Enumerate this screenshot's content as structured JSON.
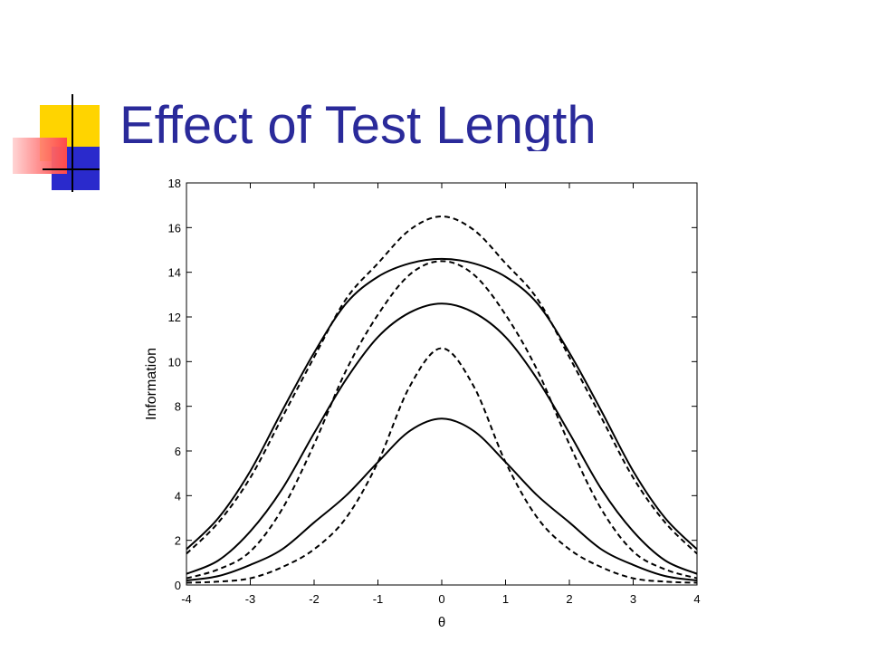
{
  "slide": {
    "title": "Effect of Test Length"
  },
  "colors": {
    "title": "#2a2a9a",
    "accent_yellow": "#ffd400",
    "accent_blue": "#2a2acc",
    "accent_red": "#ff4a4a",
    "curve": "#000000"
  },
  "chart_data": {
    "type": "line",
    "title": "",
    "xlabel": "θ",
    "ylabel": "Information",
    "xlim": [
      -4,
      4
    ],
    "ylim": [
      0,
      18
    ],
    "xticks": [
      -4,
      -3,
      -2,
      -1,
      0,
      1,
      2,
      3,
      4
    ],
    "yticks": [
      0,
      2,
      4,
      6,
      8,
      10,
      12,
      14,
      16,
      18
    ],
    "grid": false,
    "legend": "none",
    "x": [
      -4,
      -3.5,
      -3,
      -2.5,
      -2,
      -1.5,
      -1,
      -0.5,
      0,
      0.5,
      1,
      1.5,
      2,
      2.5,
      3,
      3.5,
      4
    ],
    "series": [
      {
        "style": "solid",
        "values": [
          1.6,
          3.0,
          5.1,
          7.8,
          10.4,
          12.6,
          13.8,
          14.4,
          14.6,
          14.4,
          13.8,
          12.6,
          10.4,
          7.8,
          5.1,
          3.0,
          1.6
        ]
      },
      {
        "style": "dashed",
        "values": [
          1.4,
          2.8,
          4.8,
          7.5,
          10.2,
          12.8,
          14.4,
          15.9,
          16.5,
          15.9,
          14.4,
          12.8,
          10.2,
          7.5,
          4.8,
          2.8,
          1.4
        ]
      },
      {
        "style": "solid",
        "values": [
          0.5,
          1.1,
          2.4,
          4.3,
          6.8,
          9.2,
          11.1,
          12.2,
          12.6,
          12.2,
          11.1,
          9.2,
          6.8,
          4.3,
          2.4,
          1.1,
          0.5
        ]
      },
      {
        "style": "dashed",
        "values": [
          0.3,
          0.7,
          1.5,
          3.4,
          6.3,
          9.6,
          12.1,
          13.9,
          14.5,
          13.9,
          12.1,
          9.6,
          6.3,
          3.4,
          1.5,
          0.7,
          0.3
        ]
      },
      {
        "style": "solid",
        "values": [
          0.2,
          0.4,
          0.9,
          1.6,
          2.8,
          4.0,
          5.5,
          6.9,
          7.45,
          6.9,
          5.5,
          4.0,
          2.8,
          1.6,
          0.9,
          0.4,
          0.2
        ]
      },
      {
        "style": "dashed",
        "values": [
          0.1,
          0.15,
          0.3,
          0.8,
          1.6,
          3.0,
          5.5,
          8.9,
          10.6,
          8.9,
          5.5,
          3.0,
          1.6,
          0.8,
          0.3,
          0.15,
          0.1
        ]
      }
    ]
  }
}
